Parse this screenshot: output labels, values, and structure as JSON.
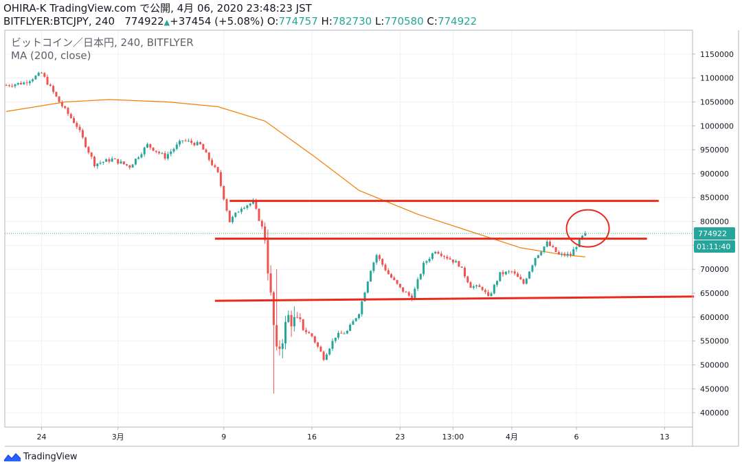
{
  "header": {
    "line1": "OHIRA-K TradingView.com で公開, 4月 06, 2020 23:48:23 JST",
    "symbol": "BITFLYER:BTCJPY, 240",
    "last": "774922",
    "change": "+37454 (+5.08%)",
    "o_label": "O:",
    "o_value": "774757",
    "h_label": "H:",
    "h_value": "782730",
    "l_label": "L:",
    "l_value": "770580",
    "c_label": "C:",
    "c_value": "774922"
  },
  "legend": {
    "series_title": "ビットコイン／日本円, 240, BITFLYER",
    "indicator": "MA (200, close)"
  },
  "footer": {
    "brand": "TradingView"
  },
  "colors": {
    "up": "#26a69a",
    "down": "#ef5350",
    "ma": "#f57c00",
    "annotation": "#e8291b",
    "last_price_tag": "#26a69a",
    "grid": "#eef0f3"
  },
  "chart_data": {
    "type": "candlestick",
    "title": "ビットコイン／日本円, 240, BITFLYER",
    "ylim": [
      370000,
      1200000
    ],
    "y_ticks": [
      400000,
      450000,
      500000,
      550000,
      600000,
      650000,
      700000,
      750000,
      800000,
      850000,
      900000,
      950000,
      1000000,
      1050000,
      1100000,
      1150000
    ],
    "x_ticks": [
      {
        "label": "24",
        "idx": 12
      },
      {
        "label": "3月",
        "idx": 38
      },
      {
        "label": "9",
        "idx": 74
      },
      {
        "label": "16",
        "idx": 104
      },
      {
        "label": "23",
        "idx": 134
      },
      {
        "label": "13:00",
        "idx": 152
      },
      {
        "label": "4月",
        "idx": 172
      },
      {
        "label": "6",
        "idx": 194
      },
      {
        "label": "13",
        "idx": 224
      }
    ],
    "bars_total": 234,
    "price_anchors": [
      [
        0,
        1085000
      ],
      [
        6,
        1090000
      ],
      [
        12,
        1110000
      ],
      [
        18,
        1050000
      ],
      [
        24,
        1000000
      ],
      [
        30,
        920000
      ],
      [
        36,
        930000
      ],
      [
        42,
        915000
      ],
      [
        48,
        960000
      ],
      [
        54,
        935000
      ],
      [
        60,
        970000
      ],
      [
        66,
        960000
      ],
      [
        72,
        900000
      ],
      [
        76,
        800000
      ],
      [
        80,
        830000
      ],
      [
        84,
        840000
      ],
      [
        88,
        770000
      ],
      [
        90,
        640000
      ],
      [
        92,
        520000
      ],
      [
        96,
        600000
      ],
      [
        100,
        580000
      ],
      [
        104,
        560000
      ],
      [
        108,
        515000
      ],
      [
        112,
        560000
      ],
      [
        116,
        570000
      ],
      [
        120,
        610000
      ],
      [
        124,
        700000
      ],
      [
        126,
        730000
      ],
      [
        130,
        690000
      ],
      [
        134,
        660000
      ],
      [
        138,
        640000
      ],
      [
        142,
        710000
      ],
      [
        146,
        740000
      ],
      [
        150,
        725000
      ],
      [
        154,
        710000
      ],
      [
        158,
        665000
      ],
      [
        162,
        660000
      ],
      [
        164,
        640000
      ],
      [
        168,
        690000
      ],
      [
        172,
        695000
      ],
      [
        176,
        670000
      ],
      [
        180,
        725000
      ],
      [
        184,
        755000
      ],
      [
        188,
        730000
      ],
      [
        192,
        730000
      ],
      [
        195,
        760000
      ],
      [
        197,
        775000
      ]
    ],
    "last_price": 774922,
    "last_price_label": "774922",
    "countdown_label": "01:11:40",
    "ma_points": [
      [
        0,
        1030000
      ],
      [
        20,
        1050000
      ],
      [
        35,
        1055000
      ],
      [
        55,
        1050000
      ],
      [
        72,
        1040000
      ],
      [
        88,
        1010000
      ],
      [
        105,
        935000
      ],
      [
        120,
        865000
      ],
      [
        140,
        815000
      ],
      [
        160,
        775000
      ],
      [
        175,
        745000
      ],
      [
        190,
        730000
      ],
      [
        197,
        726000
      ]
    ],
    "annotations": {
      "lines": [
        {
          "x1": 76,
          "y1": 843000,
          "x2": 222,
          "y2": 843000
        },
        {
          "x1": 71,
          "y1": 764000,
          "x2": 218,
          "y2": 764000
        },
        {
          "x1": 71,
          "y1": 634000,
          "x2": 234,
          "y2": 643000
        }
      ],
      "circle": {
        "x": 196,
        "y": 774000
      }
    }
  }
}
